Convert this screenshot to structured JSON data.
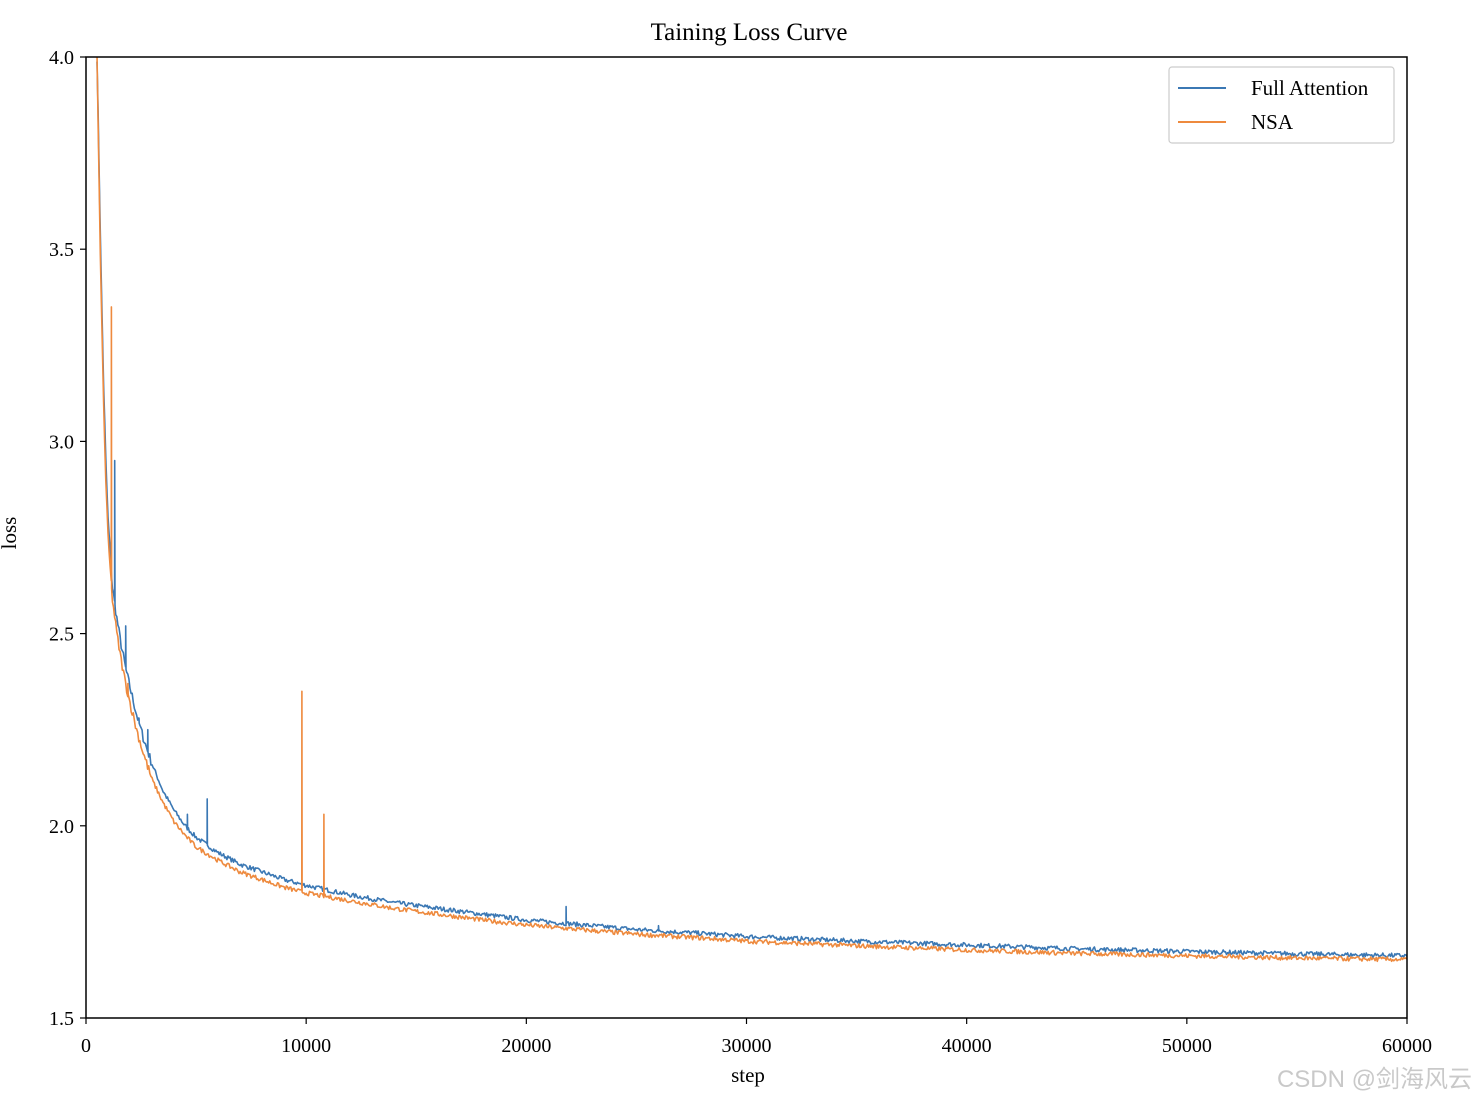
{
  "chart_data": {
    "type": "line",
    "title": "Taining Loss Curve",
    "xlabel": "step",
    "ylabel": "loss",
    "xlim": [
      0,
      60000
    ],
    "ylim": [
      1.5,
      4.0
    ],
    "xticks": [
      0,
      10000,
      20000,
      30000,
      40000,
      50000,
      60000
    ],
    "xtick_labels": [
      "0",
      "10000",
      "20000",
      "30000",
      "40000",
      "50000",
      "60000"
    ],
    "yticks": [
      1.5,
      2.0,
      2.5,
      3.0,
      3.5,
      4.0
    ],
    "ytick_labels": [
      "1.5",
      "2.0",
      "2.5",
      "3.0",
      "3.5",
      "4.0"
    ],
    "grid": false,
    "legend_position": "top-right",
    "series": [
      {
        "name": "Full Attention",
        "color": "#3b78b4",
        "points": [
          [
            500,
            4.0
          ],
          [
            600,
            3.7
          ],
          [
            700,
            3.4
          ],
          [
            800,
            3.15
          ],
          [
            900,
            2.95
          ],
          [
            1000,
            2.8
          ],
          [
            1200,
            2.62
          ],
          [
            1400,
            2.54
          ],
          [
            1600,
            2.47
          ],
          [
            1800,
            2.41
          ],
          [
            2000,
            2.36
          ],
          [
            2300,
            2.29
          ],
          [
            2600,
            2.23
          ],
          [
            3000,
            2.16
          ],
          [
            3500,
            2.09
          ],
          [
            4000,
            2.04
          ],
          [
            4500,
            2.0
          ],
          [
            5000,
            1.97
          ],
          [
            6000,
            1.93
          ],
          [
            7000,
            1.9
          ],
          [
            8000,
            1.88
          ],
          [
            9000,
            1.86
          ],
          [
            10000,
            1.845
          ],
          [
            12000,
            1.82
          ],
          [
            14000,
            1.8
          ],
          [
            16000,
            1.785
          ],
          [
            18000,
            1.77
          ],
          [
            20000,
            1.755
          ],
          [
            22000,
            1.745
          ],
          [
            25000,
            1.73
          ],
          [
            28000,
            1.72
          ],
          [
            30000,
            1.712
          ],
          [
            35000,
            1.7
          ],
          [
            40000,
            1.69
          ],
          [
            45000,
            1.68
          ],
          [
            50000,
            1.673
          ],
          [
            55000,
            1.667
          ],
          [
            60000,
            1.662
          ]
        ],
        "spikes": [
          [
            1300,
            2.95
          ],
          [
            1800,
            2.52
          ],
          [
            2400,
            2.28
          ],
          [
            2800,
            2.25
          ],
          [
            4600,
            2.03
          ],
          [
            5500,
            2.07
          ],
          [
            21800,
            1.79
          ],
          [
            26000,
            1.74
          ]
        ]
      },
      {
        "name": "NSA",
        "color": "#ee8a3e",
        "points": [
          [
            500,
            4.0
          ],
          [
            600,
            3.65
          ],
          [
            700,
            3.35
          ],
          [
            800,
            3.1
          ],
          [
            900,
            2.9
          ],
          [
            1000,
            2.75
          ],
          [
            1200,
            2.59
          ],
          [
            1400,
            2.5
          ],
          [
            1600,
            2.43
          ],
          [
            1800,
            2.37
          ],
          [
            2000,
            2.32
          ],
          [
            2300,
            2.25
          ],
          [
            2600,
            2.19
          ],
          [
            3000,
            2.12
          ],
          [
            3500,
            2.06
          ],
          [
            4000,
            2.01
          ],
          [
            4500,
            1.975
          ],
          [
            5000,
            1.945
          ],
          [
            6000,
            1.91
          ],
          [
            7000,
            1.88
          ],
          [
            8000,
            1.86
          ],
          [
            9000,
            1.84
          ],
          [
            10000,
            1.825
          ],
          [
            12000,
            1.805
          ],
          [
            14000,
            1.785
          ],
          [
            16000,
            1.77
          ],
          [
            18000,
            1.755
          ],
          [
            20000,
            1.742
          ],
          [
            22000,
            1.732
          ],
          [
            25000,
            1.718
          ],
          [
            28000,
            1.708
          ],
          [
            30000,
            1.7
          ],
          [
            35000,
            1.688
          ],
          [
            40000,
            1.677
          ],
          [
            45000,
            1.668
          ],
          [
            50000,
            1.662
          ],
          [
            55000,
            1.656
          ],
          [
            60000,
            1.652
          ]
        ],
        "spikes": [
          [
            1150,
            3.35
          ],
          [
            1900,
            2.37
          ],
          [
            9800,
            2.35
          ],
          [
            10800,
            2.03
          ]
        ]
      }
    ]
  },
  "watermark": "CSDN @剑海风云"
}
